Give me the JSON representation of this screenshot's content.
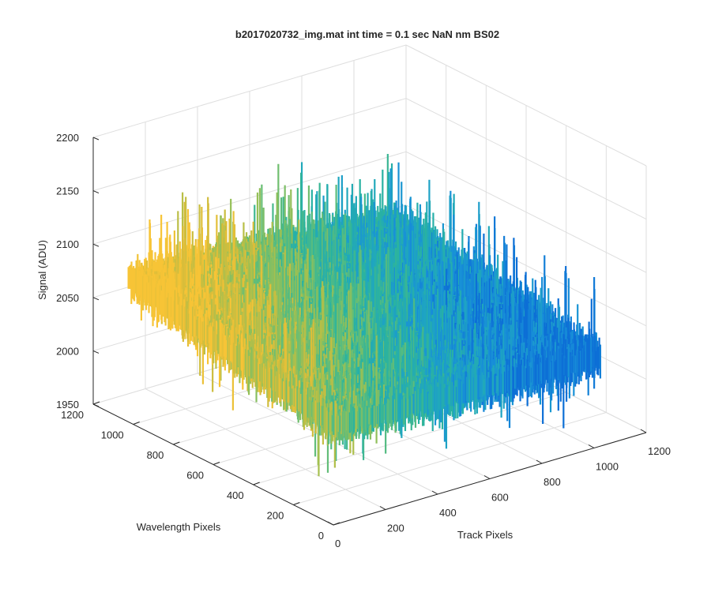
{
  "chart_data": {
    "type": "surface",
    "title": "b2017020732_img.mat int time = 0.1 sec  NaN nm BS02",
    "xlabel": "Track Pixels",
    "ylabel": "Wavelength Pixels",
    "zlabel": "Signal (ADU)",
    "xlim": [
      0,
      1200
    ],
    "ylim": [
      0,
      1200
    ],
    "zlim": [
      1950,
      2200
    ],
    "x_ticks": [
      "0",
      "200",
      "400",
      "600",
      "800",
      "1000",
      "1200"
    ],
    "y_ticks": [
      "0",
      "200",
      "400",
      "600",
      "800",
      "1000",
      "1200"
    ],
    "z_ticks": [
      "1950",
      "2000",
      "2050",
      "2100",
      "2150",
      "2200"
    ],
    "grid": true,
    "colormap": [
      "#0d6fd6",
      "#1890d8",
      "#1fa6c0",
      "#2ab3a0",
      "#5cbd7c",
      "#9ec052",
      "#d8bd3a",
      "#f7c436"
    ],
    "surface_extent": {
      "track": [
        0,
        1024
      ],
      "wavelength": [
        0,
        1024
      ]
    },
    "surface_mean": [
      {
        "track": 0,
        "wavelength": 1024,
        "signal": 2090
      },
      {
        "track": 0,
        "wavelength": 0,
        "signal": 2050
      },
      {
        "track": 1024,
        "wavelength": 0,
        "signal": 2040
      },
      {
        "track": 1024,
        "wavelength": 1024,
        "signal": 2070
      }
    ],
    "noise_amplitude": 25
  }
}
